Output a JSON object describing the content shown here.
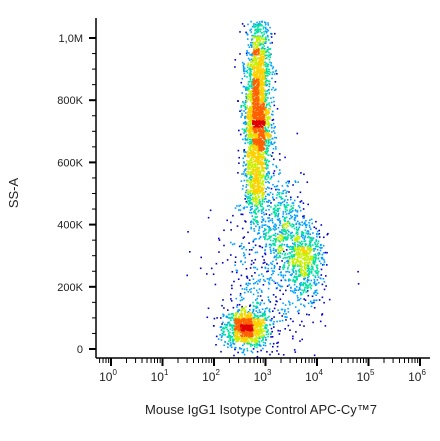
{
  "chart_data": {
    "type": "scatter",
    "subtype": "flow-cytometry density dot plot",
    "title": "",
    "xlabel": "Mouse IgG1 Isotype Control APC-Cy™7",
    "ylabel": "SS-A",
    "x_scale": "log",
    "x_ticks": [
      {
        "base": "10",
        "exp": "0"
      },
      {
        "base": "10",
        "exp": "1"
      },
      {
        "base": "10",
        "exp": "2"
      },
      {
        "base": "10",
        "exp": "3"
      },
      {
        "base": "10",
        "exp": "4"
      },
      {
        "base": "10",
        "exp": "5"
      },
      {
        "base": "10",
        "exp": "6"
      }
    ],
    "xlim": [
      1,
      1000000
    ],
    "y_ticks": [
      "0",
      "200K",
      "400K",
      "600K",
      "800K",
      "1,0M"
    ],
    "y_tick_values": [
      0,
      200000,
      400000,
      600000,
      800000,
      1000000
    ],
    "ylim": [
      -25000,
      1050000
    ],
    "grid": false,
    "color_scale": [
      "#0000c8",
      "#00a0ff",
      "#00e0a0",
      "#c8f000",
      "#ffd000",
      "#ff6000",
      "#e00000"
    ],
    "populations": [
      {
        "x_log10_center": 2.62,
        "x_log10_spread": 0.22,
        "y_center": 70000,
        "y_spread": 30000,
        "relative_count": 0.18,
        "peak_density": "high"
      },
      {
        "x_log10_center": 2.85,
        "x_log10_spread": 0.12,
        "y_center": 920000,
        "y_spread": 80000,
        "relative_count": 0.14,
        "peak_density": "medium"
      },
      {
        "x_log10_center": 2.83,
        "x_log10_spread": 0.13,
        "y_center": 720000,
        "y_spread": 90000,
        "relative_count": 0.3,
        "peak_density": "medium"
      },
      {
        "x_log10_center": 2.8,
        "x_log10_spread": 0.11,
        "y_center": 520000,
        "y_spread": 60000,
        "relative_count": 0.08,
        "peak_density": "low"
      },
      {
        "x_log10_center": 3.75,
        "x_log10_spread": 0.18,
        "y_center": 290000,
        "y_spread": 60000,
        "relative_count": 0.12,
        "peak_density": "low"
      },
      {
        "x_log10_center": 3.3,
        "x_log10_spread": 0.2,
        "y_center": 400000,
        "y_spread": 80000,
        "relative_count": 0.08,
        "peak_density": "low"
      },
      {
        "x_log10_center": 3.0,
        "x_log10_spread": 0.5,
        "y_center": 200000,
        "y_spread": 150000,
        "relative_count": 0.1,
        "peak_density": "very-low"
      }
    ]
  }
}
